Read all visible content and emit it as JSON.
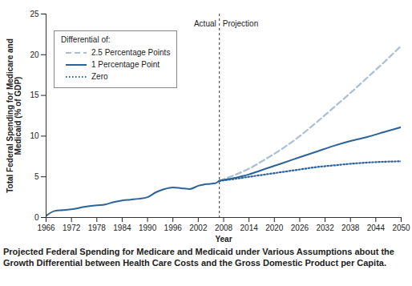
{
  "chart_data": {
    "type": "line",
    "caption": "Projected Federal Spending for Medicare and Medicaid under Various Assumptions about the Growth Differential between Health Care Costs and the Gross Domestic Product per Capita.",
    "x_label": "Year",
    "y_label": "Total Federal Spending for Medicare and Medicaid (% of GDP)",
    "legend_title": "Differential of:",
    "legend": "top-left",
    "divider": {
      "x": 2007,
      "labels": [
        "Actual",
        "Projection"
      ]
    },
    "x": [
      1966,
      1968,
      1970,
      1972,
      1975,
      1978,
      1980,
      1982,
      1984,
      1986,
      1988,
      1990,
      1992,
      1994,
      1996,
      1998,
      2000,
      2002,
      2004,
      2006,
      2007,
      2010,
      2014,
      2018,
      2022,
      2026,
      2030,
      2034,
      2038,
      2042,
      2046,
      2050
    ],
    "series": [
      {
        "name": "2.5 Percentage Points",
        "color": "#a9bfd6",
        "line_style": "dashed",
        "values": [
          null,
          null,
          null,
          null,
          null,
          null,
          null,
          null,
          null,
          null,
          null,
          null,
          null,
          null,
          null,
          null,
          null,
          null,
          null,
          null,
          4.5,
          5.1,
          6.0,
          7.2,
          8.5,
          10.0,
          11.7,
          13.5,
          15.3,
          17.2,
          19.1,
          21.1
        ]
      },
      {
        "name": "1 Percentage Point",
        "color": "#2b639a",
        "line_style": "solid",
        "values": [
          0.2,
          0.8,
          0.9,
          1.0,
          1.3,
          1.5,
          1.6,
          1.9,
          2.1,
          2.2,
          2.3,
          2.5,
          3.1,
          3.5,
          3.7,
          3.6,
          3.5,
          3.9,
          4.1,
          4.2,
          4.5,
          4.8,
          5.3,
          6.0,
          6.7,
          7.4,
          8.1,
          8.8,
          9.4,
          9.9,
          10.5,
          11.1
        ]
      },
      {
        "name": "Zero",
        "color": "#2b639a",
        "line_style": "dotted",
        "values": [
          null,
          null,
          null,
          null,
          null,
          null,
          null,
          null,
          null,
          null,
          null,
          null,
          null,
          null,
          null,
          null,
          null,
          null,
          null,
          null,
          4.5,
          4.7,
          5.0,
          5.3,
          5.6,
          5.9,
          6.2,
          6.4,
          6.6,
          6.75,
          6.85,
          6.9
        ]
      }
    ],
    "xlim": [
      1966,
      2050
    ],
    "xticks": [
      1966,
      1972,
      1978,
      1984,
      1990,
      1996,
      2002,
      2008,
      2014,
      2020,
      2026,
      2032,
      2038,
      2044,
      2050
    ],
    "ylim": [
      0,
      25
    ],
    "yticks": [
      0,
      5,
      10,
      15,
      20,
      25
    ],
    "grid": false
  }
}
